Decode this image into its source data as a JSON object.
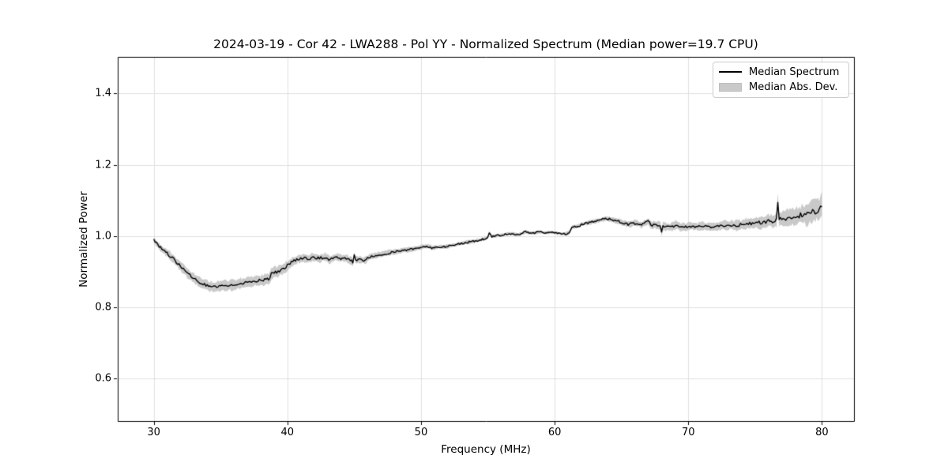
{
  "chart_data": {
    "type": "line",
    "title": "2024-03-19 - Cor 42 - LWA288 - Pol YY - Normalized Spectrum (Median power=19.7 CPU)",
    "date": "2024-03-19",
    "correlator": "Cor 42",
    "station": "LWA288",
    "polarization": "YY",
    "median_power_cpu": 19.7,
    "xlabel": "Frequency (MHz)",
    "ylabel": "Normalized Power",
    "xlim": [
      27.3,
      82.4
    ],
    "ylim": [
      0.481,
      1.503
    ],
    "xticks": [
      "30",
      "40",
      "50",
      "60",
      "70",
      "80"
    ],
    "yticks": [
      "0.6",
      "0.8",
      "1.0",
      "1.2",
      "1.4"
    ],
    "grid": true,
    "legend": {
      "position": "upper right",
      "items": [
        {
          "label": "Median Spectrum",
          "type": "line",
          "color": "#000000"
        },
        {
          "label": "Median Abs. Dev.",
          "type": "patch",
          "color": "#c9c9c9"
        }
      ]
    },
    "colors": {
      "line": "#000000",
      "band": "#c9c9c9",
      "grid": "#e0e0e0",
      "spine": "#000000",
      "tick": "#000000",
      "background": "#ffffff"
    },
    "sample_step_mhz": 0.1,
    "series": [
      {
        "name": "Median Spectrum",
        "style": "line",
        "keypoints": [
          [
            30.0,
            0.988
          ],
          [
            30.3,
            0.976
          ],
          [
            30.7,
            0.962
          ],
          [
            31.0,
            0.952
          ],
          [
            31.5,
            0.935
          ],
          [
            32.0,
            0.915
          ],
          [
            32.5,
            0.897
          ],
          [
            33.0,
            0.881
          ],
          [
            33.5,
            0.869
          ],
          [
            34.0,
            0.861
          ],
          [
            34.4,
            0.858
          ],
          [
            34.8,
            0.859
          ],
          [
            35.4,
            0.861
          ],
          [
            36.0,
            0.863
          ],
          [
            36.6,
            0.868
          ],
          [
            37.2,
            0.872
          ],
          [
            37.8,
            0.875
          ],
          [
            38.3,
            0.877
          ],
          [
            38.6,
            0.879
          ],
          [
            38.7,
            0.881
          ],
          [
            38.8,
            0.896
          ],
          [
            39.2,
            0.899
          ],
          [
            39.6,
            0.906
          ],
          [
            40.0,
            0.918
          ],
          [
            40.4,
            0.928
          ],
          [
            40.8,
            0.936
          ],
          [
            41.2,
            0.939
          ],
          [
            41.6,
            0.936
          ],
          [
            42.0,
            0.941
          ],
          [
            42.4,
            0.938
          ],
          [
            42.8,
            0.941
          ],
          [
            43.2,
            0.934
          ],
          [
            43.6,
            0.94
          ],
          [
            44.0,
            0.938
          ],
          [
            44.4,
            0.937
          ],
          [
            44.8,
            0.93
          ],
          [
            44.9,
            0.927
          ],
          [
            45.0,
            0.948
          ],
          [
            45.1,
            0.933
          ],
          [
            45.5,
            0.934
          ],
          [
            45.8,
            0.931
          ],
          [
            46.1,
            0.941
          ],
          [
            46.5,
            0.945
          ],
          [
            47.0,
            0.949
          ],
          [
            47.5,
            0.952
          ],
          [
            48.0,
            0.956
          ],
          [
            48.5,
            0.959
          ],
          [
            49.0,
            0.962
          ],
          [
            49.5,
            0.964
          ],
          [
            50.0,
            0.969
          ],
          [
            50.5,
            0.971
          ],
          [
            50.9,
            0.966
          ],
          [
            51.3,
            0.97
          ],
          [
            51.8,
            0.97
          ],
          [
            52.3,
            0.974
          ],
          [
            52.8,
            0.978
          ],
          [
            53.4,
            0.982
          ],
          [
            54.0,
            0.986
          ],
          [
            54.6,
            0.991
          ],
          [
            55.0,
            0.996
          ],
          [
            55.1,
            1.01
          ],
          [
            55.3,
            0.999
          ],
          [
            55.8,
            1.002
          ],
          [
            56.3,
            1.005
          ],
          [
            56.8,
            1.007
          ],
          [
            57.3,
            1.004
          ],
          [
            57.8,
            1.012
          ],
          [
            58.3,
            1.008
          ],
          [
            58.8,
            1.012
          ],
          [
            59.3,
            1.009
          ],
          [
            59.8,
            1.011
          ],
          [
            60.3,
            1.007
          ],
          [
            60.8,
            1.006
          ],
          [
            61.1,
            1.009
          ],
          [
            61.3,
            1.025
          ],
          [
            61.8,
            1.029
          ],
          [
            62.3,
            1.036
          ],
          [
            62.8,
            1.04
          ],
          [
            63.3,
            1.044
          ],
          [
            63.7,
            1.049
          ],
          [
            64.3,
            1.047
          ],
          [
            65.0,
            1.039
          ],
          [
            65.5,
            1.033
          ],
          [
            66.0,
            1.036
          ],
          [
            66.5,
            1.032
          ],
          [
            67.0,
            1.042
          ],
          [
            67.2,
            1.031
          ],
          [
            67.9,
            1.03
          ],
          [
            68.0,
            1.01
          ],
          [
            68.1,
            1.028
          ],
          [
            68.6,
            1.026
          ],
          [
            69.1,
            1.029
          ],
          [
            69.6,
            1.025
          ],
          [
            70.1,
            1.028
          ],
          [
            70.6,
            1.026
          ],
          [
            71.1,
            1.029
          ],
          [
            71.6,
            1.025
          ],
          [
            72.1,
            1.027
          ],
          [
            72.6,
            1.029
          ],
          [
            73.1,
            1.031
          ],
          [
            73.6,
            1.03
          ],
          [
            74.1,
            1.033
          ],
          [
            74.6,
            1.035
          ],
          [
            75.1,
            1.038
          ],
          [
            75.6,
            1.037
          ],
          [
            76.1,
            1.044
          ],
          [
            76.4,
            1.041
          ],
          [
            76.6,
            1.048
          ],
          [
            76.7,
            1.094
          ],
          [
            76.8,
            1.05
          ],
          [
            77.2,
            1.047
          ],
          [
            77.6,
            1.055
          ],
          [
            78.0,
            1.052
          ],
          [
            78.4,
            1.06
          ],
          [
            78.8,
            1.058
          ],
          [
            79.2,
            1.066
          ],
          [
            79.6,
            1.072
          ],
          [
            80.0,
            1.083
          ]
        ]
      },
      {
        "name": "Median Abs. Dev.",
        "style": "band",
        "halfwidth_keypoints": [
          [
            30,
            0.008
          ],
          [
            31,
            0.01
          ],
          [
            32,
            0.012
          ],
          [
            33,
            0.013
          ],
          [
            34.5,
            0.014
          ],
          [
            36,
            0.014
          ],
          [
            38,
            0.014
          ],
          [
            38.8,
            0.015
          ],
          [
            40,
            0.013
          ],
          [
            41,
            0.011
          ],
          [
            43,
            0.01
          ],
          [
            45,
            0.01
          ],
          [
            46.5,
            0.008
          ],
          [
            48,
            0.007
          ],
          [
            50,
            0.006
          ],
          [
            52,
            0.005
          ],
          [
            54,
            0.0045
          ],
          [
            56,
            0.004
          ],
          [
            58,
            0.004
          ],
          [
            60,
            0.004
          ],
          [
            62,
            0.005
          ],
          [
            63.5,
            0.006
          ],
          [
            65,
            0.007
          ],
          [
            66.5,
            0.008
          ],
          [
            68,
            0.01
          ],
          [
            69,
            0.011
          ],
          [
            70,
            0.01
          ],
          [
            71,
            0.011
          ],
          [
            72,
            0.011
          ],
          [
            73,
            0.012
          ],
          [
            74,
            0.014
          ],
          [
            75,
            0.015
          ],
          [
            76,
            0.017
          ],
          [
            77,
            0.02
          ],
          [
            78,
            0.022
          ],
          [
            79,
            0.027
          ],
          [
            80,
            0.032
          ]
        ]
      }
    ],
    "noise_amplitude_keypoints": [
      [
        30,
        0.0045
      ],
      [
        33,
        0.0035
      ],
      [
        36,
        0.003
      ],
      [
        39,
        0.004
      ],
      [
        42,
        0.004
      ],
      [
        45,
        0.0035
      ],
      [
        48,
        0.003
      ],
      [
        51,
        0.0025
      ],
      [
        54,
        0.003
      ],
      [
        57,
        0.003
      ],
      [
        60,
        0.0025
      ],
      [
        63,
        0.003
      ],
      [
        66,
        0.0035
      ],
      [
        69,
        0.003
      ],
      [
        72,
        0.003
      ],
      [
        74,
        0.004
      ],
      [
        76,
        0.005
      ],
      [
        78,
        0.007
      ],
      [
        80,
        0.01
      ]
    ]
  }
}
